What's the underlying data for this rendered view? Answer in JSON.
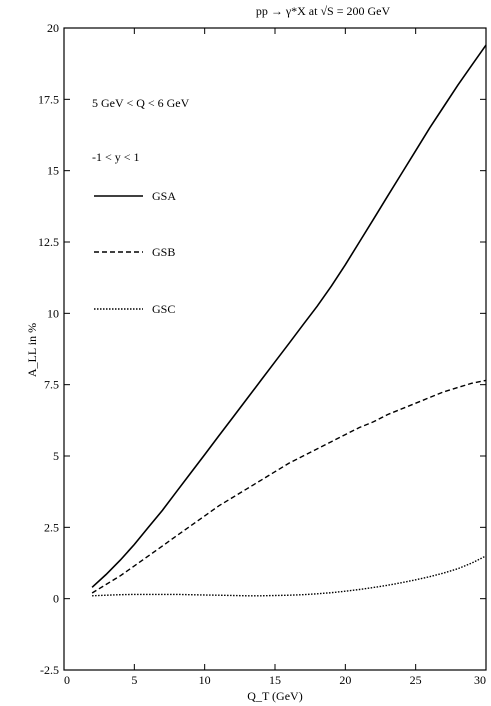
{
  "chart_data": {
    "type": "line",
    "title": "pp → γ*X at √S = 200 GeV",
    "xlabel": "Q_T (GeV)",
    "ylabel": "A_LL in %",
    "xlim": [
      0,
      30
    ],
    "ylim": [
      -2.5,
      20
    ],
    "x_ticks": [
      0,
      5,
      10,
      15,
      20,
      25,
      30
    ],
    "x_tick_labels": [
      "0",
      "5",
      "10",
      "15",
      "20",
      "25",
      "30"
    ],
    "y_ticks": [
      -2.5,
      0,
      2.5,
      5,
      7.5,
      10,
      12.5,
      15,
      17.5,
      20
    ],
    "y_tick_labels": [
      "-2.5",
      "0",
      "2.5",
      "5",
      "7.5",
      "10",
      "12.5",
      "15",
      "17.5",
      "20"
    ],
    "grid": false,
    "annotations": [
      "5 GeV < Q < 6 GeV",
      "-1 < y < 1"
    ],
    "legend_position": "upper-left",
    "x": [
      2,
      3,
      4,
      5,
      6,
      7,
      8,
      9,
      10,
      11,
      12,
      13,
      14,
      15,
      16,
      17,
      18,
      19,
      20,
      21,
      22,
      23,
      24,
      25,
      26,
      27,
      28,
      29,
      30
    ],
    "series": [
      {
        "name": "GSA",
        "style": "solid",
        "values": [
          0.4,
          0.85,
          1.35,
          1.9,
          2.5,
          3.1,
          3.75,
          4.4,
          5.05,
          5.7,
          6.35,
          7.0,
          7.65,
          8.3,
          8.95,
          9.6,
          10.25,
          10.95,
          11.7,
          12.5,
          13.3,
          14.1,
          14.9,
          15.7,
          16.5,
          17.25,
          18.0,
          18.7,
          19.4
        ]
      },
      {
        "name": "GSB",
        "style": "dashed",
        "values": [
          0.2,
          0.5,
          0.8,
          1.15,
          1.5,
          1.85,
          2.2,
          2.55,
          2.9,
          3.25,
          3.55,
          3.85,
          4.15,
          4.45,
          4.75,
          5.0,
          5.25,
          5.5,
          5.75,
          6.0,
          6.2,
          6.45,
          6.65,
          6.85,
          7.05,
          7.25,
          7.4,
          7.55,
          7.65
        ]
      },
      {
        "name": "GSC",
        "style": "dotted",
        "values": [
          0.1,
          0.12,
          0.14,
          0.15,
          0.15,
          0.15,
          0.15,
          0.14,
          0.13,
          0.12,
          0.11,
          0.1,
          0.1,
          0.11,
          0.12,
          0.14,
          0.17,
          0.21,
          0.26,
          0.32,
          0.39,
          0.47,
          0.56,
          0.66,
          0.77,
          0.9,
          1.05,
          1.25,
          1.5
        ]
      }
    ]
  }
}
